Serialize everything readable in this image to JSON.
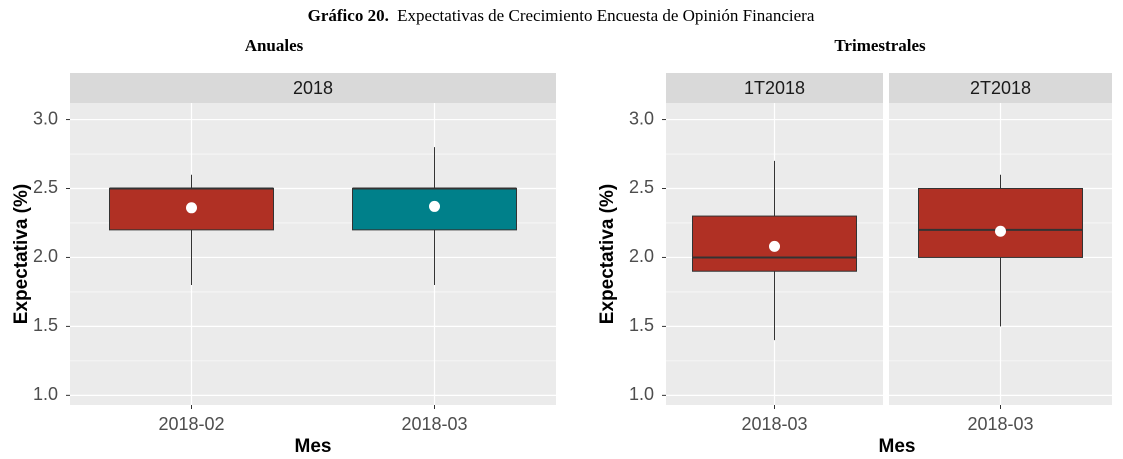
{
  "title_label": "Gráfico 20.",
  "title": "Expectativas de Crecimiento Encuesta de Opinión Financiera",
  "chart_data": [
    {
      "type": "box",
      "subtitle": "Anuales",
      "y_label": "Expectativa (%)",
      "x_label": "Mes",
      "ylim": [
        0.93,
        3.12
      ],
      "yticks": [
        {
          "value": 1,
          "label": "1.0"
        },
        1.5,
        {
          "value": 2,
          "label": "2.0"
        },
        2.5,
        {
          "value": 3,
          "label": "3.0"
        }
      ],
      "minor_yticks": [
        1.25,
        1.75,
        2.25,
        2.75
      ],
      "grid": true,
      "panels": [
        {
          "facet": "2018",
          "categories": [
            "2018-02",
            "2018-03"
          ],
          "boxes": [
            {
              "low": 1.8,
              "q1": 2.2,
              "median": 2.5,
              "q3": 2.5,
              "high": 2.6,
              "mean": 2.36,
              "color": "#b03024"
            },
            {
              "low": 1.8,
              "q1": 2.2,
              "median": 2.5,
              "q3": 2.5,
              "high": 2.8,
              "mean": 2.37,
              "color": "#00808a"
            }
          ]
        }
      ]
    },
    {
      "type": "box",
      "subtitle": "Trimestrales",
      "y_label": "Expectativa (%)",
      "x_label": "Mes",
      "ylim": [
        0.93,
        3.12
      ],
      "yticks": [
        {
          "value": 1,
          "label": "1.0"
        },
        1.5,
        {
          "value": 2,
          "label": "2.0"
        },
        2.5,
        {
          "value": 3,
          "label": "3.0"
        }
      ],
      "minor_yticks": [
        1.25,
        1.75,
        2.25,
        2.75
      ],
      "grid": true,
      "panels": [
        {
          "facet": "1T2018",
          "categories": [
            "2018-03"
          ],
          "boxes": [
            {
              "low": 1.4,
              "q1": 1.9,
              "median": 2.0,
              "q3": 2.3,
              "high": 2.7,
              "mean": 2.08,
              "color": "#b03024"
            }
          ]
        },
        {
          "facet": "2T2018",
          "categories": [
            "2018-03"
          ],
          "boxes": [
            {
              "low": 1.5,
              "q1": 2.0,
              "median": 2.2,
              "q3": 2.5,
              "high": 2.6,
              "mean": 2.19,
              "color": "#b03024"
            }
          ]
        }
      ]
    }
  ]
}
